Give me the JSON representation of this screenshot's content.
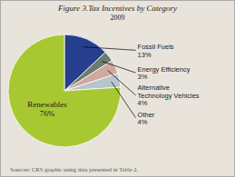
{
  "chart_data": {
    "type": "pie",
    "title": "Figure 3.Tax Incentives by Category",
    "subtitle": "2009",
    "source": "Sources: CRS graphic using data presented in Table 2.",
    "categories": [
      "Fossil Fuels",
      "Energy Efficiency",
      "Alternative\nTechnology Vehicles",
      "Other",
      "Renewables"
    ],
    "values": [
      13,
      3,
      4,
      4,
      76
    ],
    "value_labels": [
      "13%",
      "3%",
      "4%",
      "4%",
      "76%"
    ],
    "colors": [
      "#253f8e",
      "#6b7b6e",
      "#cfa8a0",
      "#b8c4cc",
      "#a8c832"
    ],
    "data_labels": true
  }
}
